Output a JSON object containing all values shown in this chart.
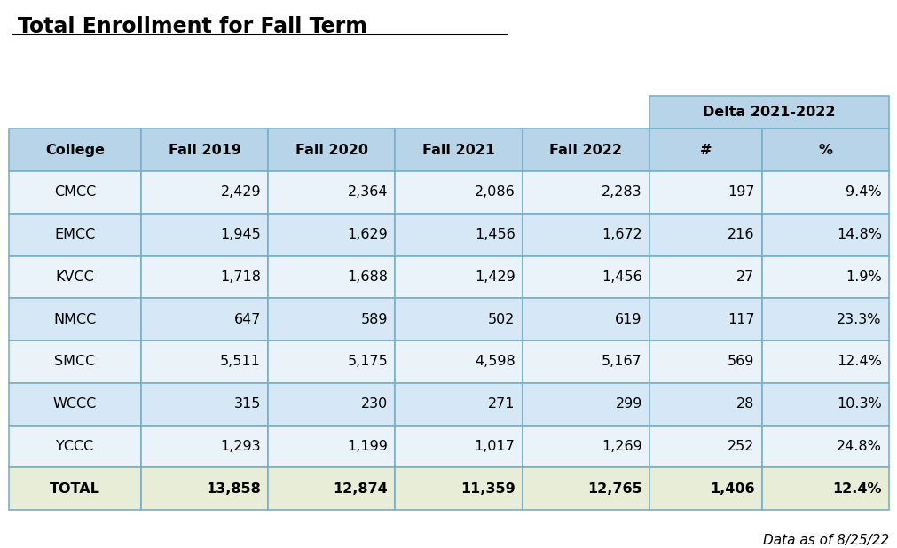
{
  "title": "Total Enrollment for Fall Term",
  "footnote": "Data as of 8/25/22",
  "delta_header": "Delta 2021-2022",
  "col_headers": [
    "College",
    "Fall 2019",
    "Fall 2020",
    "Fall 2021",
    "Fall 2022",
    "#",
    "%"
  ],
  "rows": [
    [
      "CMCC",
      "2,429",
      "2,364",
      "2,086",
      "2,283",
      "197",
      "9.4%"
    ],
    [
      "EMCC",
      "1,945",
      "1,629",
      "1,456",
      "1,672",
      "216",
      "14.8%"
    ],
    [
      "KVCC",
      "1,718",
      "1,688",
      "1,429",
      "1,456",
      "27",
      "1.9%"
    ],
    [
      "NMCC",
      "647",
      "589",
      "502",
      "619",
      "117",
      "23.3%"
    ],
    [
      "SMCC",
      "5,511",
      "5,175",
      "4,598",
      "5,167",
      "569",
      "12.4%"
    ],
    [
      "WCCC",
      "315",
      "230",
      "271",
      "299",
      "28",
      "10.3%"
    ],
    [
      "YCCC",
      "1,293",
      "1,199",
      "1,017",
      "1,269",
      "252",
      "24.8%"
    ],
    [
      "TOTAL",
      "13,858",
      "12,874",
      "11,359",
      "12,765",
      "1,406",
      "12.4%"
    ]
  ],
  "header_bg": "#B8D4E8",
  "row_bg_even": "#D6E8F5",
  "row_bg_odd": "#EAF3FA",
  "total_bg": "#E8EDD8",
  "delta_header_bg": "#B8D4E8",
  "border_color": "#7AAFC8",
  "title_color": "#000000",
  "text_color": "#000000",
  "background_color": "#FFFFFF"
}
